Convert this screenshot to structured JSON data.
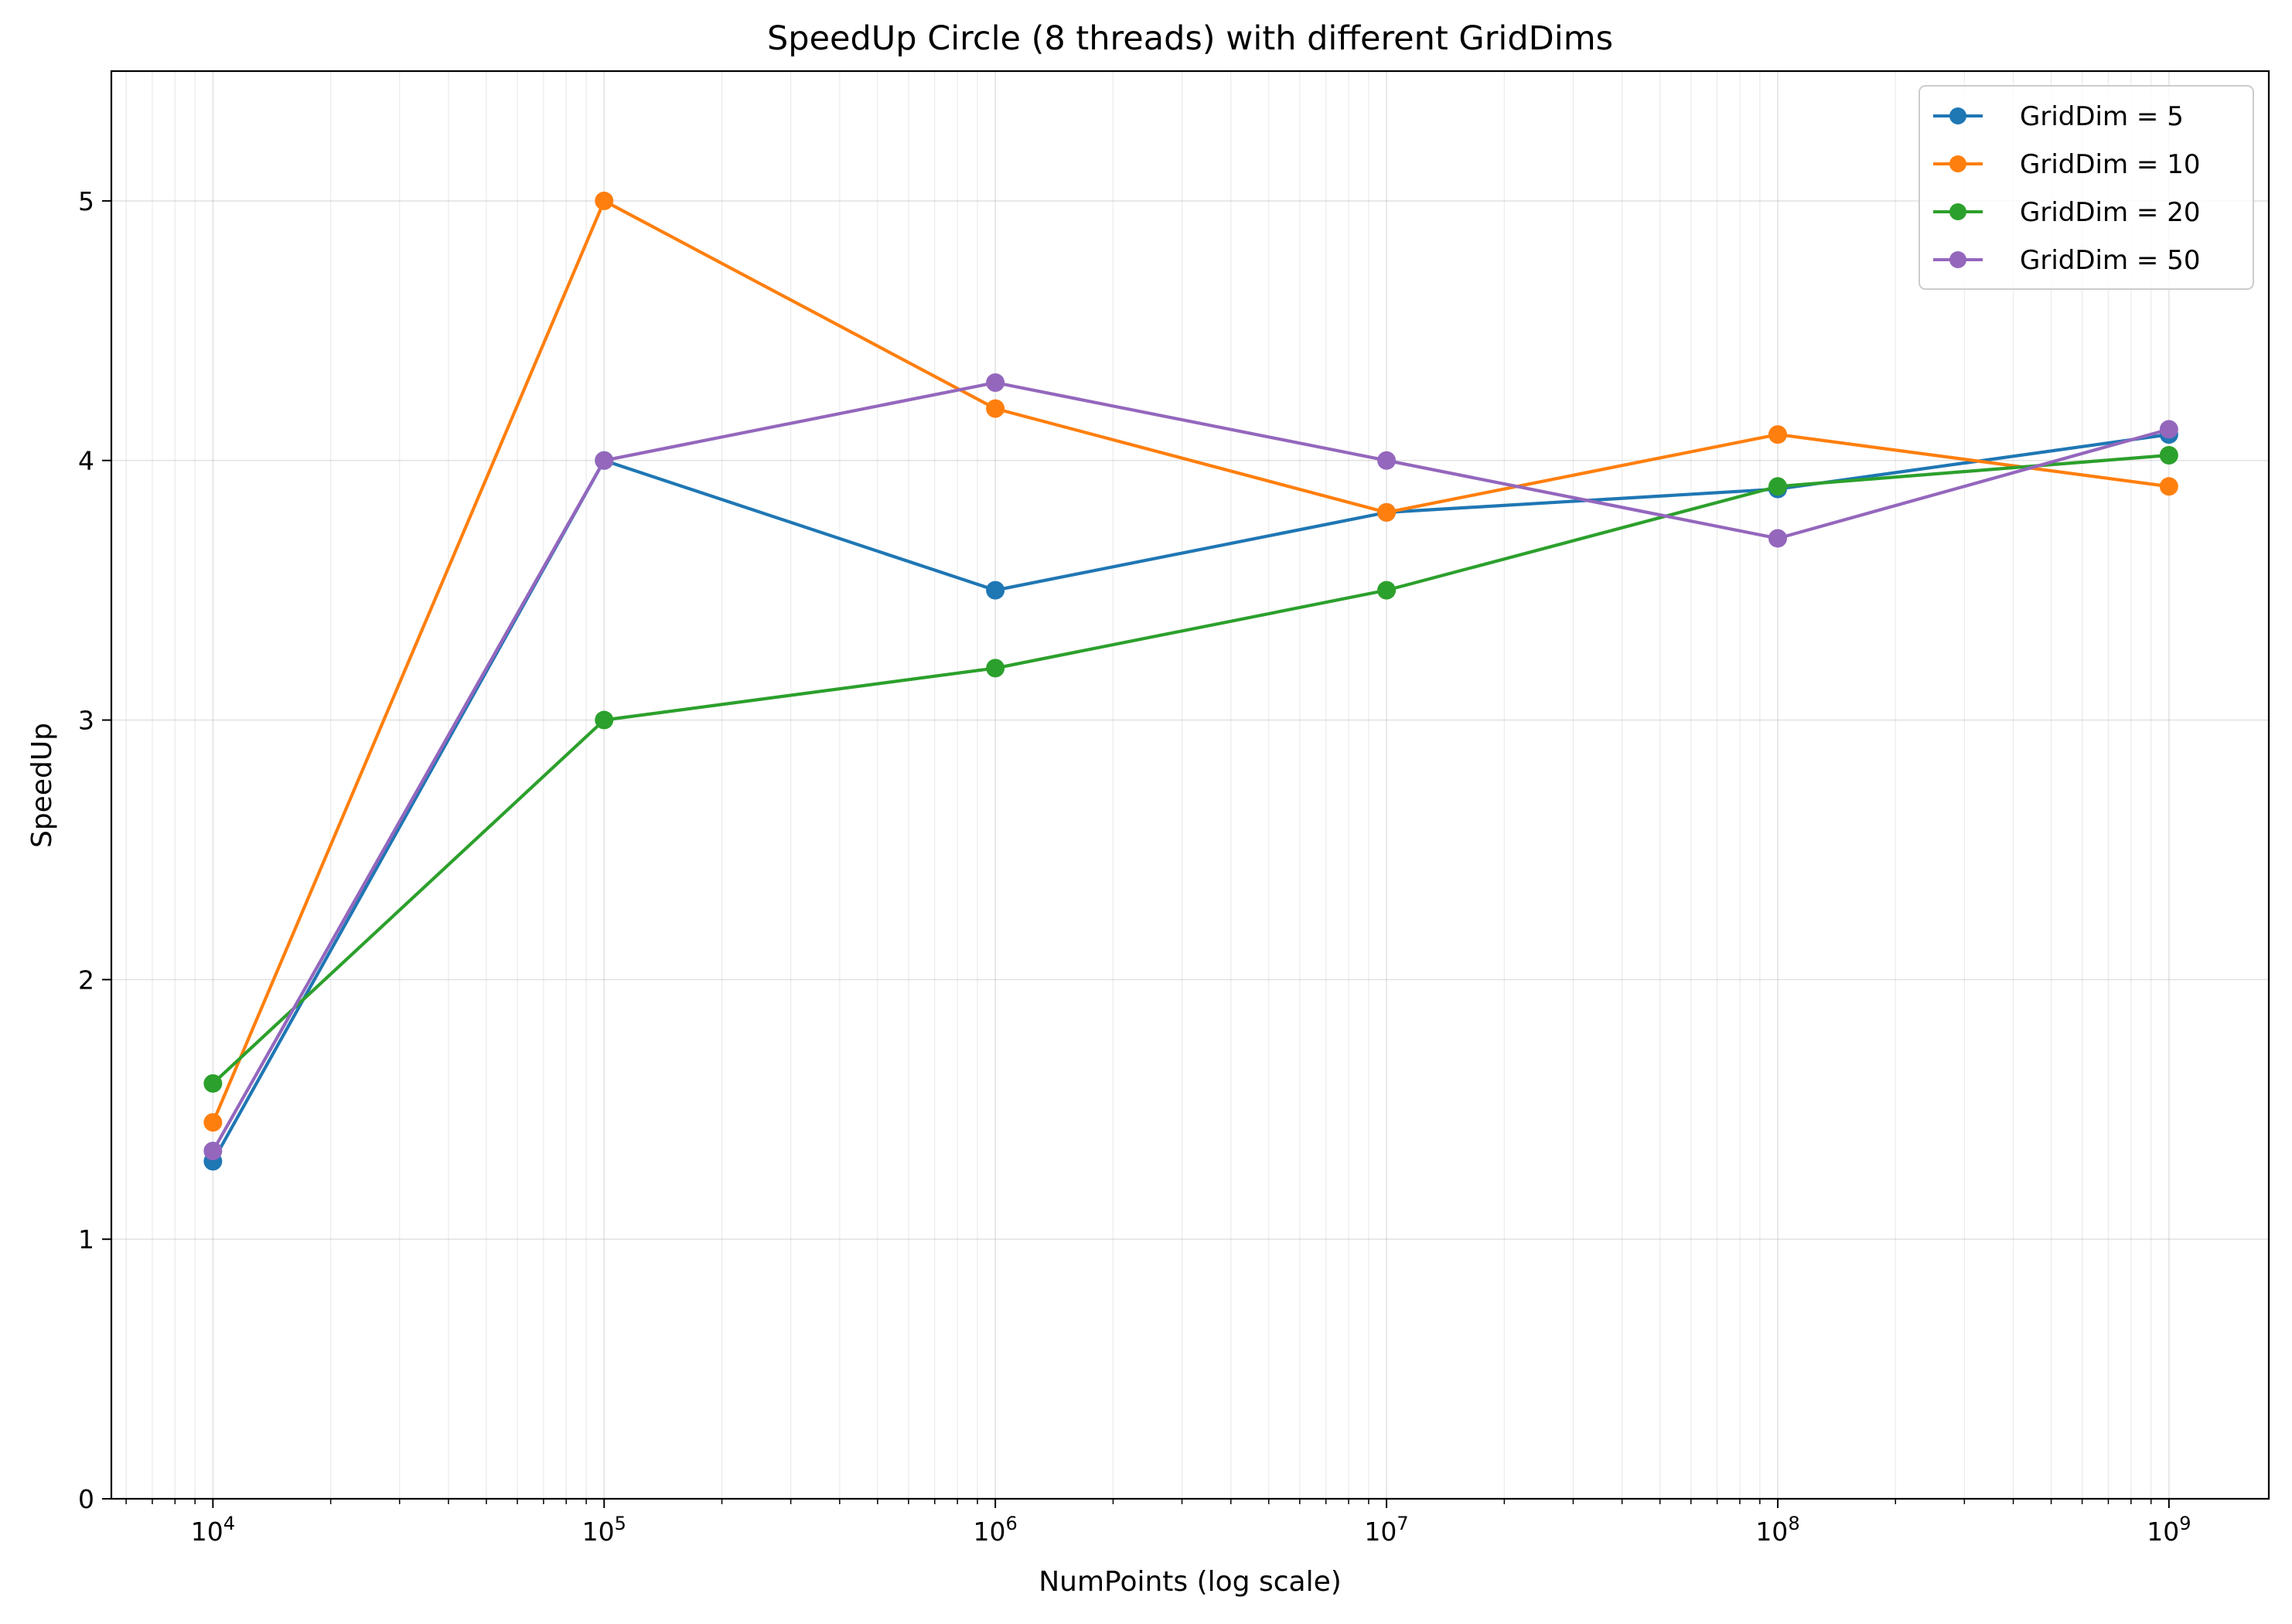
{
  "chart_data": {
    "type": "line",
    "title": "SpeedUp Circle (8 threads) with different GridDims",
    "xlabel": "NumPoints (log scale)",
    "ylabel": "SpeedUp",
    "xscale": "log",
    "x": [
      10000,
      100000,
      1000000,
      10000000,
      100000000,
      1000000000
    ],
    "x_tick_labels": [
      {
        "base": "10",
        "exp": "4"
      },
      {
        "base": "10",
        "exp": "5"
      },
      {
        "base": "10",
        "exp": "6"
      },
      {
        "base": "10",
        "exp": "7"
      },
      {
        "base": "10",
        "exp": "8"
      },
      {
        "base": "10",
        "exp": "9"
      }
    ],
    "y_ticks": [
      0,
      1,
      2,
      3,
      4,
      5
    ],
    "y_tick_labels": [
      "0",
      "1",
      "2",
      "3",
      "4",
      "5"
    ],
    "xlim": [
      5500,
      1800000000
    ],
    "ylim": [
      0,
      5.5
    ],
    "grid": true,
    "legend_position": "top-right",
    "series": [
      {
        "name": "GridDim = 5",
        "color": "#1f77b4",
        "values": [
          1.3,
          4.0,
          3.5,
          3.8,
          3.89,
          4.1
        ]
      },
      {
        "name": "GridDim = 10",
        "color": "#ff7f0e",
        "values": [
          1.45,
          5.0,
          4.2,
          3.8,
          4.1,
          3.9
        ]
      },
      {
        "name": "GridDim = 20",
        "color": "#2ca02c",
        "values": [
          1.6,
          3.0,
          3.2,
          3.5,
          3.9,
          4.02
        ]
      },
      {
        "name": "GridDim = 50",
        "color": "#9467bd",
        "values": [
          1.34,
          4.0,
          4.3,
          4.0,
          3.7,
          4.12
        ]
      }
    ]
  }
}
